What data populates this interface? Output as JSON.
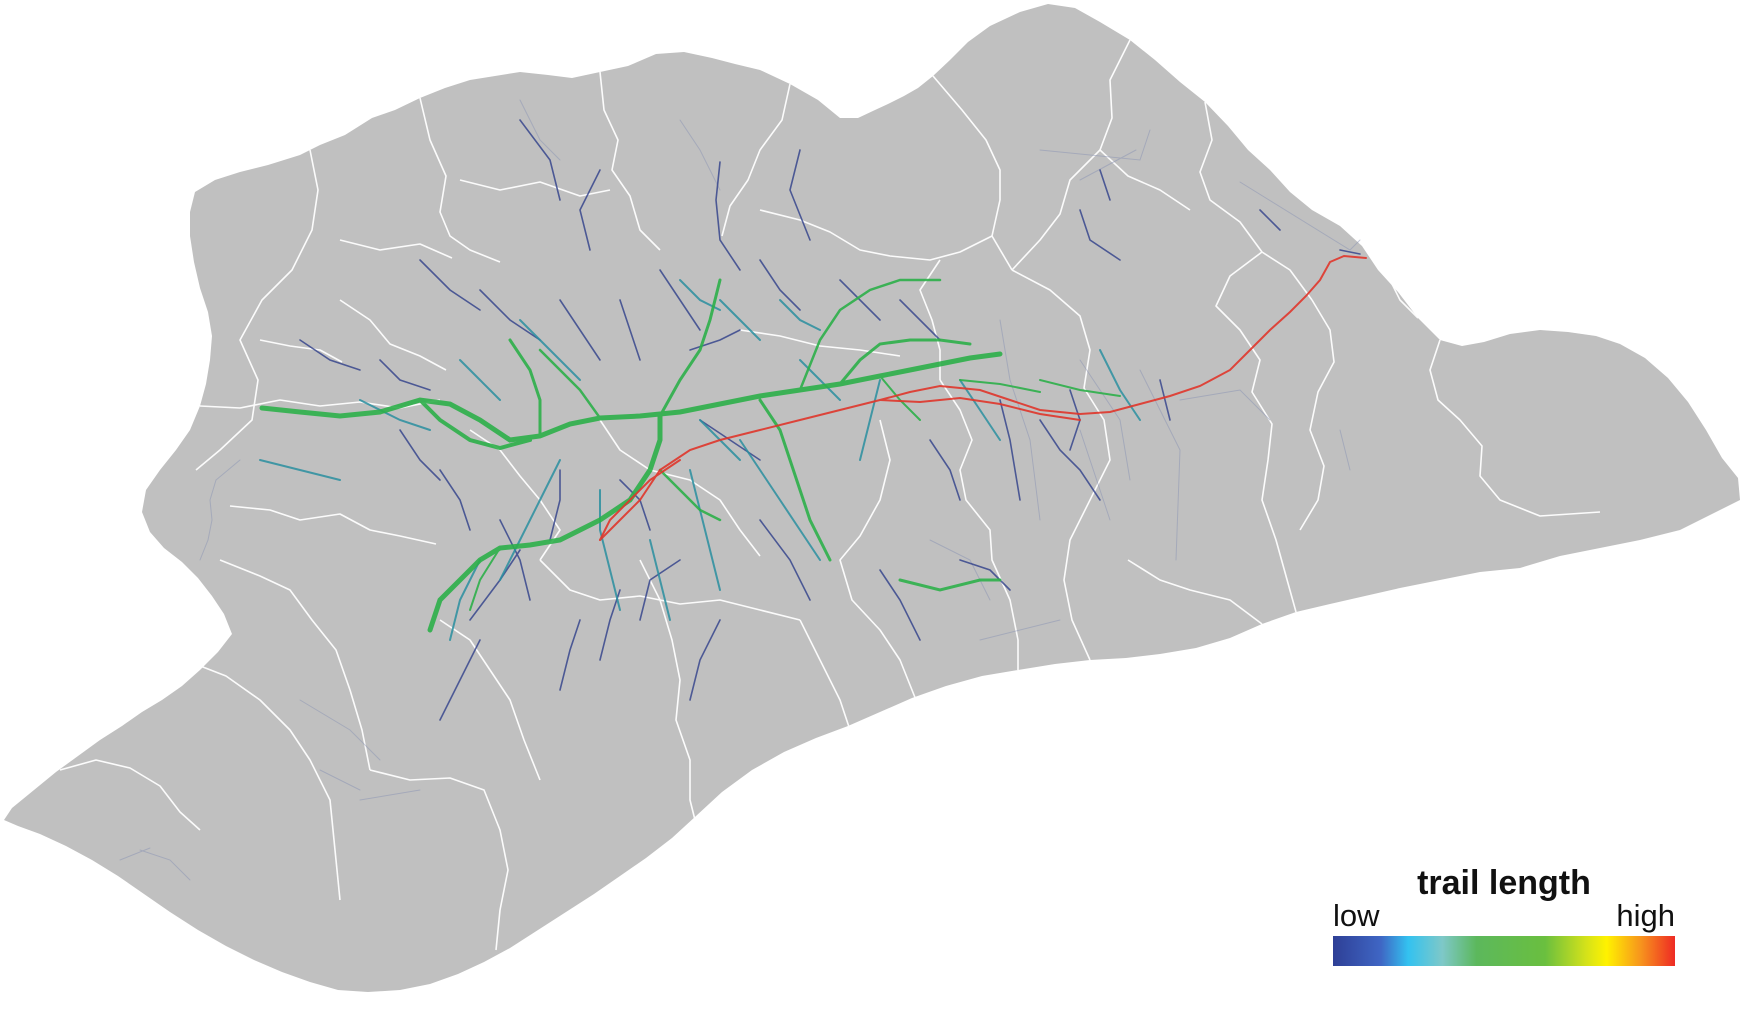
{
  "map": {
    "base_fill": "#c0c0c0",
    "border_color": "#ffffff",
    "background": "#ffffff"
  },
  "legend": {
    "title": "trail length",
    "low_label": "low",
    "high_label": "high",
    "colors": [
      "#2e3f96",
      "#3f66c4",
      "#33c2f0",
      "#7ec8c8",
      "#5cb85c",
      "#6abf3f",
      "#d4e21a",
      "#fff200",
      "#f7941d",
      "#ee2a24"
    ]
  }
}
